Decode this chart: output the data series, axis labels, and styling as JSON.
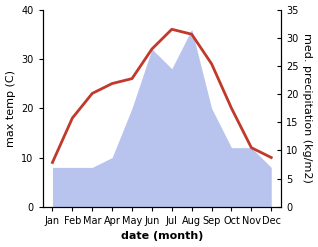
{
  "months": [
    "Jan",
    "Feb",
    "Mar",
    "Apr",
    "May",
    "Jun",
    "Jul",
    "Aug",
    "Sep",
    "Oct",
    "Nov",
    "Dec"
  ],
  "temperature": [
    9,
    18,
    23,
    25,
    26,
    32,
    36,
    35,
    29,
    20,
    12,
    10
  ],
  "precipitation_left": [
    8,
    8,
    8,
    10,
    20,
    32,
    28,
    36,
    20,
    12,
    12,
    8
  ],
  "temp_color": "#c0392b",
  "precip_color_fill": "#b8c4ee",
  "temp_ylim": [
    0,
    40
  ],
  "precip_ylim": [
    0,
    35
  ],
  "temp_yticks": [
    0,
    10,
    20,
    30,
    40
  ],
  "precip_yticks": [
    0,
    5,
    10,
    15,
    20,
    25,
    30,
    35
  ],
  "xlabel": "date (month)",
  "ylabel_left": "max temp (C)",
  "ylabel_right": "med. precipitation (kg/m2)",
  "background_color": "#ffffff",
  "line_width": 2.0,
  "label_fontsize": 8,
  "tick_fontsize": 7
}
